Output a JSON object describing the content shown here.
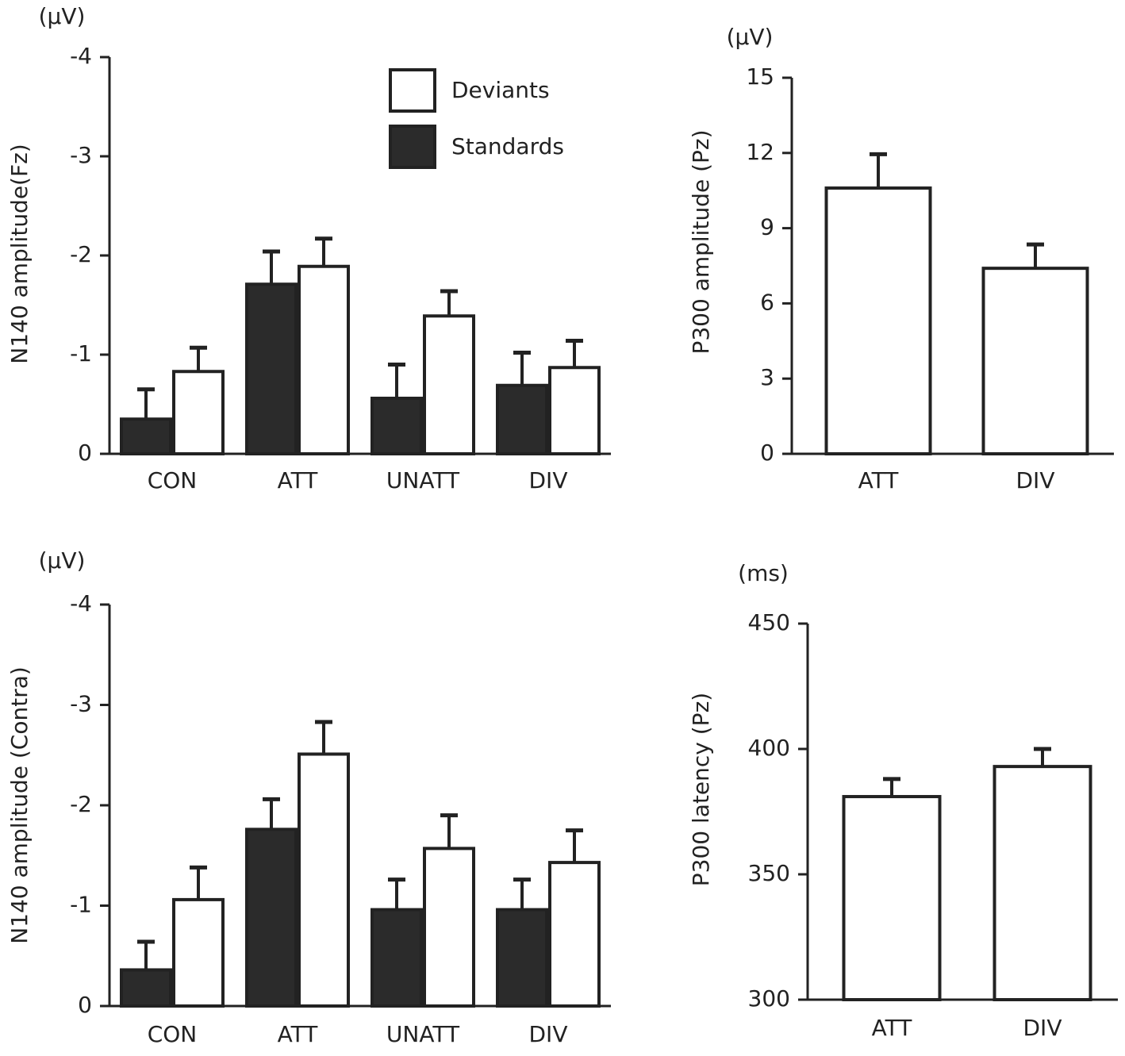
{
  "chart_data": [
    {
      "type": "bar",
      "unit_label": "(μV)",
      "y_label": "N140 amplitude(Fz)",
      "categories": [
        "CON",
        "ATT",
        "UNATT",
        "DIV"
      ],
      "series": [
        {
          "name": "Standards",
          "color": "#2b2b2b",
          "values": [
            -0.35,
            -1.71,
            -0.56,
            -0.69
          ],
          "errors": [
            0.3,
            0.33,
            0.34,
            0.33
          ]
        },
        {
          "name": "Deviants",
          "color": "#ffffff",
          "values": [
            -0.83,
            -1.89,
            -1.39,
            -0.87
          ],
          "errors": [
            0.24,
            0.28,
            0.25,
            0.27
          ]
        }
      ],
      "ylim": [
        0,
        -4
      ],
      "yticks": [
        0,
        -1,
        -2,
        -3,
        -4
      ]
    },
    {
      "type": "bar",
      "unit_label": "(μV)",
      "y_label": "P300 amplitude (Pz)",
      "categories": [
        "ATT",
        "DIV"
      ],
      "color": "#ffffff",
      "values": [
        10.6,
        7.4
      ],
      "errors": [
        1.35,
        0.95
      ],
      "ylim": [
        0,
        15
      ],
      "yticks": [
        0,
        3,
        6,
        9,
        12,
        15
      ]
    },
    {
      "type": "bar",
      "unit_label": "(μV)",
      "y_label": "N140 amplitude (Contra)",
      "categories": [
        "CON",
        "ATT",
        "UNATT",
        "DIV"
      ],
      "series": [
        {
          "name": "Standards",
          "color": "#2b2b2b",
          "values": [
            -0.36,
            -1.76,
            -0.96,
            -0.96
          ],
          "errors": [
            0.28,
            0.3,
            0.3,
            0.3
          ]
        },
        {
          "name": "Deviants",
          "color": "#ffffff",
          "values": [
            -1.06,
            -2.51,
            -1.57,
            -1.43
          ],
          "errors": [
            0.32,
            0.32,
            0.33,
            0.32
          ]
        }
      ],
      "ylim": [
        0,
        -4
      ],
      "yticks": [
        0,
        -1,
        -2,
        -3,
        -4
      ]
    },
    {
      "type": "bar",
      "unit_label": "(ms)",
      "y_label": "P300 latency (Pz)",
      "categories": [
        "ATT",
        "DIV"
      ],
      "color": "#ffffff",
      "values": [
        381,
        393
      ],
      "errors": [
        7,
        7
      ],
      "ylim": [
        300,
        450
      ],
      "yticks": [
        300,
        350,
        400,
        450
      ]
    }
  ]
}
